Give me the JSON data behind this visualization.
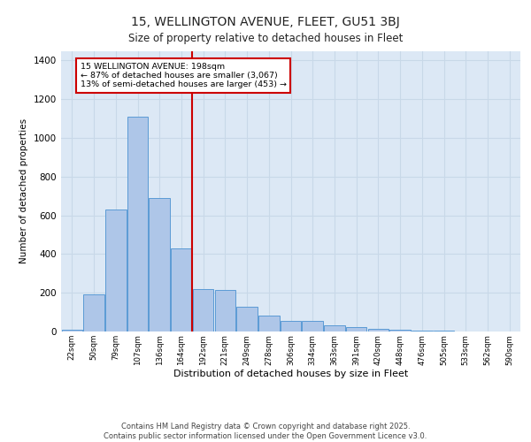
{
  "title_line1": "15, WELLINGTON AVENUE, FLEET, GU51 3BJ",
  "title_line2": "Size of property relative to detached houses in Fleet",
  "xlabel": "Distribution of detached houses by size in Fleet",
  "ylabel": "Number of detached properties",
  "categories": [
    "22sqm",
    "50sqm",
    "79sqm",
    "107sqm",
    "136sqm",
    "164sqm",
    "192sqm",
    "221sqm",
    "249sqm",
    "278sqm",
    "306sqm",
    "334sqm",
    "363sqm",
    "391sqm",
    "420sqm",
    "448sqm",
    "476sqm",
    "505sqm",
    "533sqm",
    "562sqm",
    "590sqm"
  ],
  "values": [
    10,
    190,
    630,
    1110,
    690,
    430,
    220,
    215,
    130,
    80,
    55,
    55,
    30,
    25,
    15,
    10,
    5,
    3,
    2,
    1,
    1
  ],
  "bar_color": "#aec6e8",
  "bar_edge_color": "#5b9bd5",
  "grid_color": "#c8d8e8",
  "background_color": "#dce8f5",
  "vline_index": 6,
  "vline_color": "#cc0000",
  "annotation_text": "15 WELLINGTON AVENUE: 198sqm\n← 87% of detached houses are smaller (3,067)\n13% of semi-detached houses are larger (453) →",
  "annotation_box_color": "#cc0000",
  "footer_text": "Contains HM Land Registry data © Crown copyright and database right 2025.\nContains public sector information licensed under the Open Government Licence v3.0.",
  "ylim": [
    0,
    1450
  ],
  "yticks": [
    0,
    200,
    400,
    600,
    800,
    1000,
    1200,
    1400
  ]
}
